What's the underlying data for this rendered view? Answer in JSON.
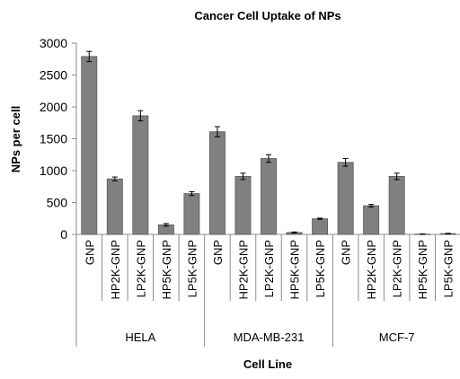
{
  "chart_data": {
    "type": "bar",
    "title": "Cancer Cell Uptake of NPs",
    "ylabel": "NPs per cell",
    "xlabel": "Cell Line",
    "ylim": [
      0,
      3000
    ],
    "yticks": [
      0,
      500,
      1000,
      1500,
      2000,
      2500,
      3000
    ],
    "grid": false,
    "legend": "none",
    "bar_color": "#808080",
    "groups": [
      {
        "name": "HELA",
        "categories": [
          "GNP",
          "HP2K-GNP",
          "LP2K-GNP",
          "HP5K-GNP",
          "LP5K-GNP"
        ],
        "values": [
          2790,
          870,
          1860,
          150,
          640
        ],
        "errors": [
          80,
          30,
          80,
          20,
          30
        ]
      },
      {
        "name": "MDA-MB-231",
        "categories": [
          "GNP",
          "HP2K-GNP",
          "LP2K-GNP",
          "HP5K-GNP",
          "LP5K-GNP"
        ],
        "values": [
          1610,
          910,
          1190,
          30,
          245
        ],
        "errors": [
          80,
          50,
          60,
          8,
          10
        ]
      },
      {
        "name": "MCF-7",
        "categories": [
          "GNP",
          "HP2K-GNP",
          "LP2K-GNP",
          "HP5K-GNP",
          "LP5K-GNP"
        ],
        "values": [
          1130,
          450,
          910,
          5,
          12
        ],
        "errors": [
          60,
          20,
          50,
          3,
          5
        ]
      }
    ]
  }
}
